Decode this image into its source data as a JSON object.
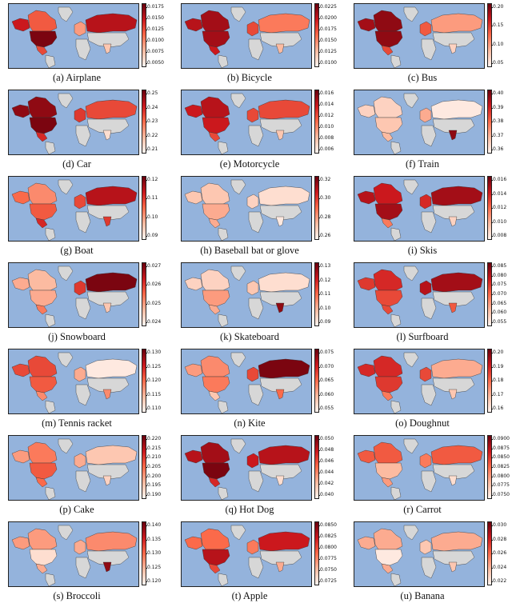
{
  "figure": {
    "panels": [
      {
        "label": "(a) Airplane",
        "ticks": [
          "0.0175",
          "0.0150",
          "0.0125",
          "0.0100",
          "0.0075",
          "0.0050"
        ],
        "intensity": {
          "NA": 0.95,
          "CA": 0.55,
          "AK": 0.75,
          "EU": 0.35,
          "RU": 0.8,
          "IN": 0.2,
          "MX": 0.6
        }
      },
      {
        "label": "(b) Bicycle",
        "ticks": [
          "0.0225",
          "0.0200",
          "0.0175",
          "0.0150",
          "0.0125",
          "0.0100"
        ],
        "intensity": {
          "NA": 0.85,
          "CA": 0.85,
          "AK": 0.8,
          "EU": 0.6,
          "RU": 0.45,
          "IN": 0.25,
          "MX": 0.75
        }
      },
      {
        "label": "(c) Bus",
        "ticks": [
          "0.20",
          "0.15",
          "0.10",
          "0.05"
        ],
        "intensity": {
          "NA": 0.9,
          "CA": 0.9,
          "AK": 0.85,
          "EU": 0.55,
          "RU": 0.35,
          "IN": 0.15,
          "MX": 0.6
        }
      },
      {
        "label": "(d) Car",
        "ticks": [
          "0.25",
          "0.24",
          "0.23",
          "0.22",
          "0.21"
        ],
        "intensity": {
          "NA": 0.95,
          "CA": 0.9,
          "AK": 0.9,
          "EU": 0.65,
          "RU": 0.6,
          "IN": 0.1,
          "MX": 0.7
        }
      },
      {
        "label": "(e) Motorcycle",
        "ticks": [
          "0.016",
          "0.014",
          "0.012",
          "0.010",
          "0.008",
          "0.006"
        ],
        "intensity": {
          "NA": 0.75,
          "CA": 0.8,
          "AK": 0.75,
          "EU": 0.6,
          "RU": 0.6,
          "IN": 0.2,
          "MX": 0.6
        }
      },
      {
        "label": "(f) Train",
        "ticks": [
          "0.40",
          "0.39",
          "0.38",
          "0.37",
          "0.36"
        ],
        "intensity": {
          "NA": 0.2,
          "CA": 0.15,
          "AK": 0.15,
          "EU": 0.3,
          "RU": 0.05,
          "IN": 0.9,
          "MX": 0.25
        }
      },
      {
        "label": "(g) Boat",
        "ticks": [
          "0.12",
          "0.11",
          "0.10",
          "0.09"
        ],
        "intensity": {
          "NA": 0.55,
          "CA": 0.4,
          "AK": 0.5,
          "EU": 0.6,
          "RU": 0.8,
          "IN": 0.65,
          "MX": 0.7
        }
      },
      {
        "label": "(h) Baseball bat or glove",
        "ticks": [
          "0.32",
          "0.30",
          "0.28",
          "0.26"
        ],
        "intensity": {
          "NA": 0.3,
          "CA": 0.2,
          "AK": 0.2,
          "EU": 0.15,
          "RU": 0.1,
          "IN": 0.05,
          "MX": 0.3
        }
      },
      {
        "label": "(i) Skis",
        "ticks": [
          "0.016",
          "0.014",
          "0.012",
          "0.010",
          "0.008"
        ],
        "intensity": {
          "NA": 0.85,
          "CA": 0.75,
          "AK": 0.8,
          "EU": 0.7,
          "RU": 0.85,
          "IN": 0.15,
          "MX": 0.45
        }
      },
      {
        "label": "(j) Snowboard",
        "ticks": [
          "0.027",
          "0.026",
          "0.025",
          "0.024"
        ],
        "intensity": {
          "NA": 0.3,
          "CA": 0.25,
          "AK": 0.3,
          "EU": 0.65,
          "RU": 0.95,
          "IN": 0.2,
          "MX": 0.45
        }
      },
      {
        "label": "(k) Skateboard",
        "ticks": [
          "0.13",
          "0.12",
          "0.11",
          "0.10",
          "0.09"
        ],
        "intensity": {
          "NA": 0.35,
          "CA": 0.15,
          "AK": 0.15,
          "EU": 0.2,
          "RU": 0.1,
          "IN": 0.9,
          "MX": 0.3
        }
      },
      {
        "label": "(l) Surfboard",
        "ticks": [
          "0.085",
          "0.080",
          "0.075",
          "0.070",
          "0.065",
          "0.060",
          "0.055"
        ],
        "intensity": {
          "NA": 0.6,
          "CA": 0.7,
          "AK": 0.65,
          "EU": 0.8,
          "RU": 0.85,
          "IN": 0.55,
          "MX": 0.6
        }
      },
      {
        "label": "(m) Tennis racket",
        "ticks": [
          "0.130",
          "0.125",
          "0.120",
          "0.115",
          "0.110"
        ],
        "intensity": {
          "NA": 0.55,
          "CA": 0.6,
          "AK": 0.6,
          "EU": 0.3,
          "RU": 0.05,
          "IN": 0.4,
          "MX": 0.4
        }
      },
      {
        "label": "(n) Kite",
        "ticks": [
          "0.075",
          "0.070",
          "0.065",
          "0.060",
          "0.055"
        ],
        "intensity": {
          "NA": 0.45,
          "CA": 0.4,
          "AK": 0.35,
          "EU": 0.6,
          "RU": 0.95,
          "IN": 0.5,
          "MX": 0.2
        }
      },
      {
        "label": "(o) Doughnut",
        "ticks": [
          "0.20",
          "0.19",
          "0.18",
          "0.17",
          "0.16"
        ],
        "intensity": {
          "NA": 0.65,
          "CA": 0.7,
          "AK": 0.7,
          "EU": 0.6,
          "RU": 0.3,
          "IN": 0.2,
          "MX": 0.45
        }
      },
      {
        "label": "(p) Cake",
        "ticks": [
          "0.220",
          "0.215",
          "0.210",
          "0.205",
          "0.200",
          "0.195",
          "0.190"
        ],
        "intensity": {
          "NA": 0.55,
          "CA": 0.45,
          "AK": 0.35,
          "EU": 0.3,
          "RU": 0.2,
          "IN": 0.15,
          "MX": 0.5
        }
      },
      {
        "label": "(q) Hot Dog",
        "ticks": [
          "0.050",
          "0.048",
          "0.046",
          "0.044",
          "0.042",
          "0.040"
        ],
        "intensity": {
          "NA": 0.95,
          "CA": 0.85,
          "AK": 0.8,
          "EU": 0.75,
          "RU": 0.8,
          "IN": 0.1,
          "MX": 0.7
        }
      },
      {
        "label": "(r) Carrot",
        "ticks": [
          "0.0900",
          "0.0875",
          "0.0850",
          "0.0825",
          "0.0800",
          "0.0775",
          "0.0750"
        ],
        "intensity": {
          "NA": 0.25,
          "CA": 0.55,
          "AK": 0.55,
          "EU": 0.45,
          "RU": 0.55,
          "IN": 0.1,
          "MX": 0.35
        }
      },
      {
        "label": "(s) Broccoli",
        "ticks": [
          "0.140",
          "0.135",
          "0.130",
          "0.125",
          "0.120"
        ],
        "intensity": {
          "NA": 0.1,
          "CA": 0.35,
          "AK": 0.35,
          "EU": 0.3,
          "RU": 0.4,
          "IN": 0.9,
          "MX": 0.3
        }
      },
      {
        "label": "(t) Apple",
        "ticks": [
          "0.0850",
          "0.0825",
          "0.0800",
          "0.0775",
          "0.0750",
          "0.0725"
        ],
        "intensity": {
          "NA": 0.8,
          "CA": 0.5,
          "AK": 0.5,
          "EU": 0.45,
          "RU": 0.75,
          "IN": 0.3,
          "MX": 0.6
        }
      },
      {
        "label": "(u) Banana",
        "ticks": [
          "0.030",
          "0.028",
          "0.026",
          "0.024",
          "0.022"
        ],
        "intensity": {
          "NA": 0.05,
          "CA": 0.3,
          "AK": 0.3,
          "EU": 0.2,
          "RU": 0.3,
          "IN": 0.2,
          "MX": 0.3
        }
      }
    ],
    "colors": {
      "ocean": "#94b3dc",
      "nodata": "#d7d7d7",
      "cmap": [
        "#fff5f0",
        "#fcbba1",
        "#fb6a4a",
        "#cb181d",
        "#67000d"
      ]
    }
  },
  "chart_data": {
    "type": "heatmap",
    "colormap": "Reds",
    "regions": [
      "United States",
      "Canada",
      "Alaska",
      "Europe",
      "Russia",
      "India",
      "Mexico"
    ],
    "charts": "21 choropleth world maps (North America, Europe, Asia); one per object category, each with its own color scale"
  }
}
